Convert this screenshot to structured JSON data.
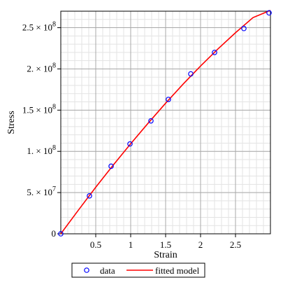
{
  "chart_data": {
    "type": "scatter",
    "xlabel": "Strain",
    "ylabel": "Stress",
    "xlim": [
      0,
      3
    ],
    "ylim": [
      0,
      270000000
    ],
    "grid": true,
    "legend_position": "bottom",
    "x_ticks": [
      {
        "value": 0.5,
        "label": "0.5"
      },
      {
        "value": 1,
        "label": "1"
      },
      {
        "value": 1.5,
        "label": "1.5"
      },
      {
        "value": 2,
        "label": "2"
      },
      {
        "value": 2.5,
        "label": "2.5"
      }
    ],
    "y_ticks": [
      {
        "value": 0,
        "base": "0",
        "exp": ""
      },
      {
        "value": 50000000,
        "base": "5. × 10",
        "exp": "7"
      },
      {
        "value": 100000000,
        "base": "1. × 10",
        "exp": "8"
      },
      {
        "value": 150000000,
        "base": "1.5 × 10",
        "exp": "8"
      },
      {
        "value": 200000000,
        "base": "2. × 10",
        "exp": "8"
      },
      {
        "value": 250000000,
        "base": "2.5 × 10",
        "exp": "8"
      }
    ],
    "series": [
      {
        "name": "data",
        "kind": "markers",
        "color": "#0000ff",
        "x": [
          0.0,
          0.41,
          0.72,
          0.99,
          1.29,
          1.54,
          1.86,
          2.2,
          2.62,
          2.98
        ],
        "y": [
          0,
          46000000,
          82000000,
          109000000,
          137000000,
          163000000,
          194000000,
          220000000,
          249000000,
          268000000
        ]
      },
      {
        "name": "fitted model",
        "kind": "line",
        "color": "#ff0000",
        "x": [
          0.0,
          0.25,
          0.5,
          0.75,
          1.0,
          1.25,
          1.5,
          1.75,
          2.0,
          2.25,
          2.5,
          2.75,
          3.0
        ],
        "y": [
          0,
          28500000,
          56500000,
          83300000,
          109200000,
          134200000,
          158400000,
          181500000,
          203500000,
          224300000,
          243900000,
          262200000,
          271000000
        ]
      }
    ]
  }
}
